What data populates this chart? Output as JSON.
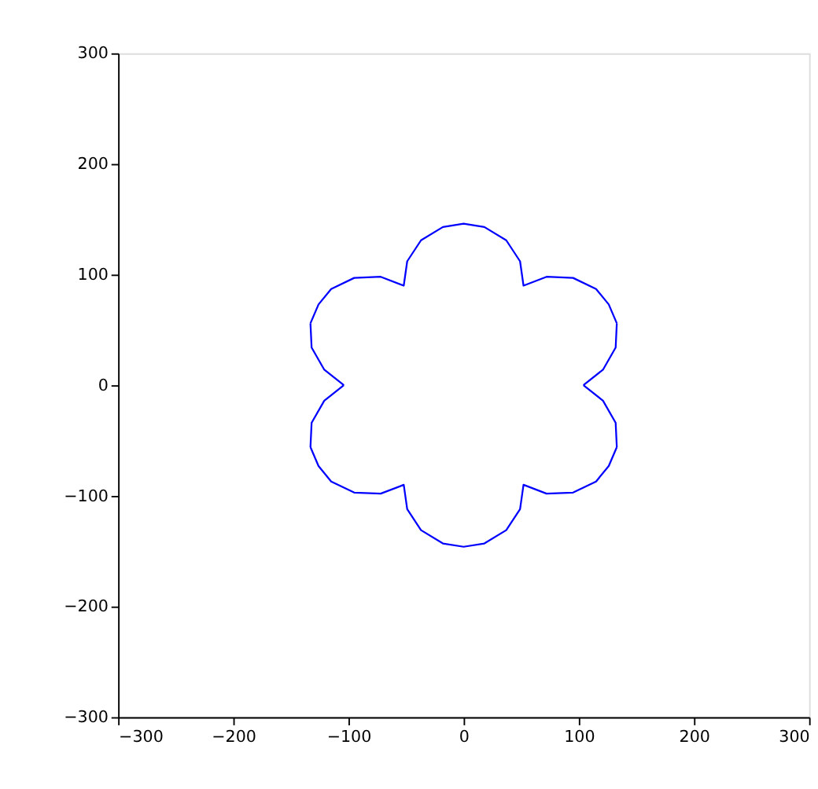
{
  "chart_data": {
    "type": "line",
    "xlim": [
      -300,
      300
    ],
    "ylim": [
      -300,
      300
    ],
    "xticks": [
      -300,
      -200,
      -100,
      0,
      100,
      200,
      300
    ],
    "yticks": [
      -300,
      -200,
      -100,
      0,
      100,
      200,
      300
    ],
    "grid": false,
    "marker": "none",
    "line_style": "solid",
    "series": [
      {
        "color": "#0000ff",
        "x": [
          -133,
          -126,
          -115,
          -95,
          -72,
          -52,
          -49,
          -37,
          -18,
          0,
          18,
          37,
          49,
          52,
          72,
          95,
          115,
          126,
          133
        ],
        "values": [
          56,
          73,
          87,
          97,
          98,
          90,
          112,
          131,
          143,
          146,
          143,
          131,
          112,
          90,
          98,
          97,
          87,
          73,
          56
        ]
      },
      {
        "color": "#0000ff",
        "x": [
          -133,
          -126,
          -115,
          -95,
          -72,
          -52,
          -49,
          -37,
          -18,
          0,
          18,
          37,
          49,
          52,
          72,
          95,
          115,
          126,
          133
        ],
        "values": [
          -56,
          -73,
          -87,
          -97,
          -98,
          -90,
          -112,
          -131,
          -143,
          -146,
          -143,
          -131,
          -112,
          -90,
          -98,
          -97,
          -87,
          -73,
          -56
        ]
      },
      {
        "color": "#0000ff",
        "x": [
          -133,
          -132,
          -121,
          -104
        ],
        "values": [
          56,
          34,
          14,
          0
        ]
      },
      {
        "color": "#0000ff",
        "x": [
          -133,
          -132,
          -121,
          -104
        ],
        "values": [
          -56,
          -34,
          -14,
          0
        ]
      },
      {
        "color": "#0000ff",
        "x": [
          104,
          121,
          132,
          133
        ],
        "values": [
          0,
          14,
          34,
          56
        ]
      },
      {
        "color": "#0000ff",
        "x": [
          104,
          121,
          132,
          133
        ],
        "values": [
          0,
          -14,
          -34,
          -56
        ]
      }
    ]
  }
}
